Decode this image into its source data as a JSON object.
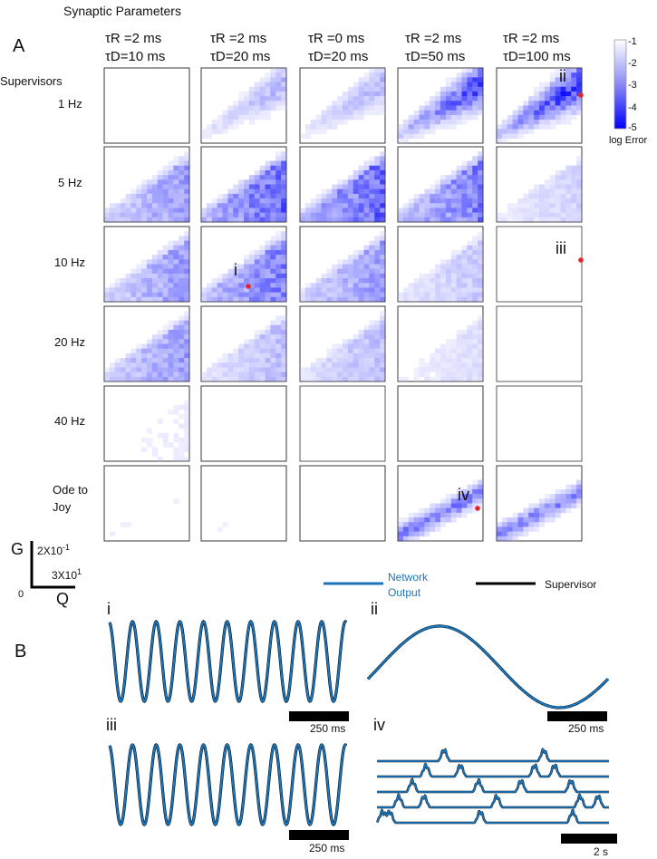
{
  "figure": {
    "title": "Synaptic Parameters",
    "panel_a_label": "A",
    "panel_b_label": "B",
    "rows_header": "Supervisors",
    "columns": [
      {
        "tau_r_label": "τR =2 ms",
        "tau_d_label": "τD=10 ms"
      },
      {
        "tau_r_label": "τR =2 ms",
        "tau_d_label": "τD=20 ms"
      },
      {
        "tau_r_label": "τR =0 ms",
        "tau_d_label": "τD=20 ms"
      },
      {
        "tau_r_label": "τR =2 ms",
        "tau_d_label": "τD=50 ms"
      },
      {
        "tau_r_label": "τR =2 ms",
        "tau_d_label": "τD=100 ms"
      }
    ],
    "rows": [
      {
        "label": "1 Hz"
      },
      {
        "label": "5 Hz"
      },
      {
        "label": "10 Hz"
      },
      {
        "label": "20 Hz"
      },
      {
        "label": "40 Hz"
      },
      {
        "label": "Ode to Joy"
      }
    ],
    "axes_key": {
      "y_label": "G",
      "x_label": "Q",
      "y_scale": "2X10",
      "y_exp": "-1",
      "x_scale": "3X10",
      "x_exp": "1",
      "origin": "0"
    },
    "colorbar": {
      "ticks": [
        "-1",
        "-2",
        "-3",
        "-4",
        "-5"
      ],
      "label": "log Error",
      "color_high": "#ffffff",
      "color_low": "#0000ff"
    },
    "markers": [
      {
        "label": "ii",
        "row": 0,
        "col": 4
      },
      {
        "label": "i",
        "row": 2,
        "col": 1
      },
      {
        "label": "iii",
        "row": 2,
        "col": 4
      },
      {
        "label": "iv",
        "row": 5,
        "col": 3
      }
    ],
    "legend": {
      "network_label_line1": "Network",
      "network_label_line2": "Output",
      "supervisor_label": "Supervisor",
      "network_color": "#1b75bb",
      "supervisor_color": "#000000"
    },
    "subpanels": [
      {
        "label": "i",
        "scale_label": "250 ms",
        "type": "sine",
        "cycles": 10
      },
      {
        "label": "ii",
        "scale_label": "250 ms",
        "type": "sine",
        "cycles": 1
      },
      {
        "label": "iii",
        "scale_label": "250 ms",
        "type": "sine",
        "cycles": 10
      },
      {
        "label": "iv",
        "scale_label": "2 s",
        "type": "song",
        "voices": 5
      }
    ],
    "marker_color": "#e8242a"
  }
}
